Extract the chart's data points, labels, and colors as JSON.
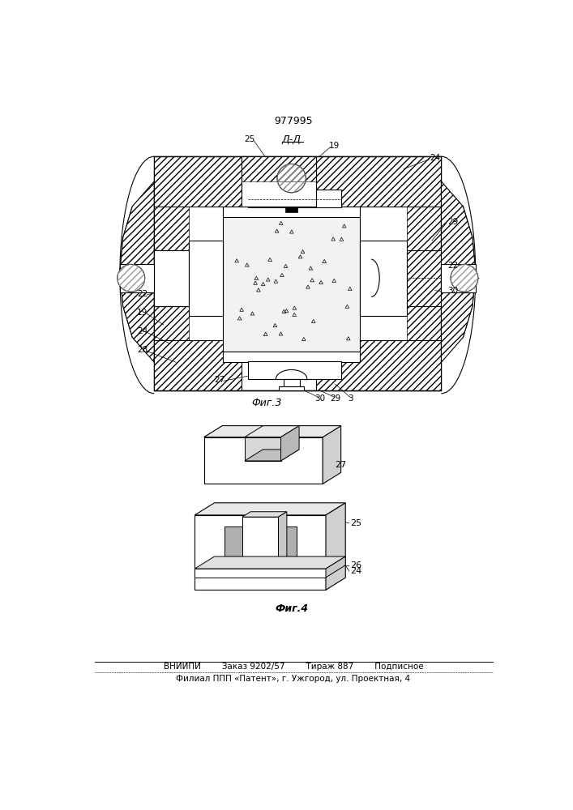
{
  "patent_number": "977995",
  "fig3_label": "Фиг.3",
  "fig4_label": "Фиг.4",
  "section_label": "Д-Д",
  "footer_line1": "ВНИИПИ        Заказ 9202/57        Тираж 887        Подписное",
  "footer_line2": "Филиал ППП «Патент», г. Ужгород, ул. Проектная, 4",
  "bg_color": "#ffffff",
  "line_color": "#000000"
}
